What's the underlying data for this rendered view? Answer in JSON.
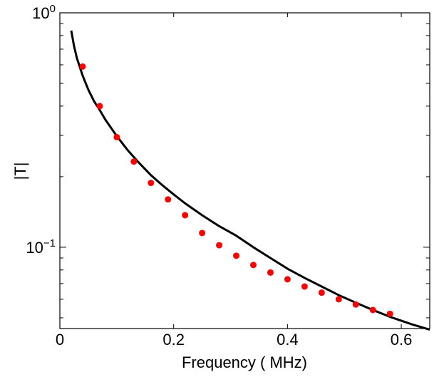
{
  "chart_data": {
    "type": "scatter",
    "title": "",
    "xlabel": "Frequency ( MHz)",
    "ylabel": "|T|",
    "xlim": [
      0,
      0.65
    ],
    "ylim": [
      0.045,
      1.0
    ],
    "yscale": "log",
    "grid": false,
    "legend": "none",
    "x_ticks": [
      0,
      0.2,
      0.4,
      0.6
    ],
    "x_tick_labels": [
      "0",
      "0.2",
      "0.4",
      "0.6"
    ],
    "y_ticks": [
      {
        "value": 1.0,
        "base": "10",
        "exp": "0"
      },
      {
        "value": 0.1,
        "base": "10",
        "exp": "−1"
      }
    ],
    "y_minor_ticks": [
      0.05,
      0.06,
      0.07,
      0.08,
      0.09,
      0.2,
      0.3,
      0.4,
      0.5,
      0.6,
      0.7,
      0.8,
      0.9
    ],
    "series": [
      {
        "type": "line",
        "color": "#000000",
        "x": [
          0.02,
          0.025,
          0.03,
          0.04,
          0.05,
          0.06,
          0.07,
          0.08,
          0.1,
          0.12,
          0.14,
          0.16,
          0.18,
          0.2,
          0.22,
          0.25,
          0.28,
          0.31,
          0.34,
          0.37,
          0.4,
          0.43,
          0.46,
          0.49,
          0.52,
          0.55,
          0.58,
          0.62,
          0.65
        ],
        "y": [
          0.84,
          0.72,
          0.64,
          0.54,
          0.47,
          0.42,
          0.385,
          0.35,
          0.298,
          0.258,
          0.228,
          0.203,
          0.184,
          0.168,
          0.154,
          0.137,
          0.123,
          0.112,
          0.1,
          0.09,
          0.081,
          0.074,
          0.068,
          0.0625,
          0.058,
          0.054,
          0.0505,
          0.0468,
          0.0445
        ]
      },
      {
        "type": "scatter",
        "color": "#ff0000",
        "x": [
          0.04,
          0.07,
          0.1,
          0.13,
          0.16,
          0.19,
          0.22,
          0.25,
          0.28,
          0.31,
          0.34,
          0.37,
          0.4,
          0.43,
          0.46,
          0.49,
          0.52,
          0.55,
          0.58
        ],
        "y": [
          0.59,
          0.4,
          0.295,
          0.232,
          0.188,
          0.16,
          0.137,
          0.115,
          0.102,
          0.092,
          0.084,
          0.078,
          0.073,
          0.068,
          0.064,
          0.06,
          0.057,
          0.054,
          0.052
        ]
      }
    ]
  }
}
